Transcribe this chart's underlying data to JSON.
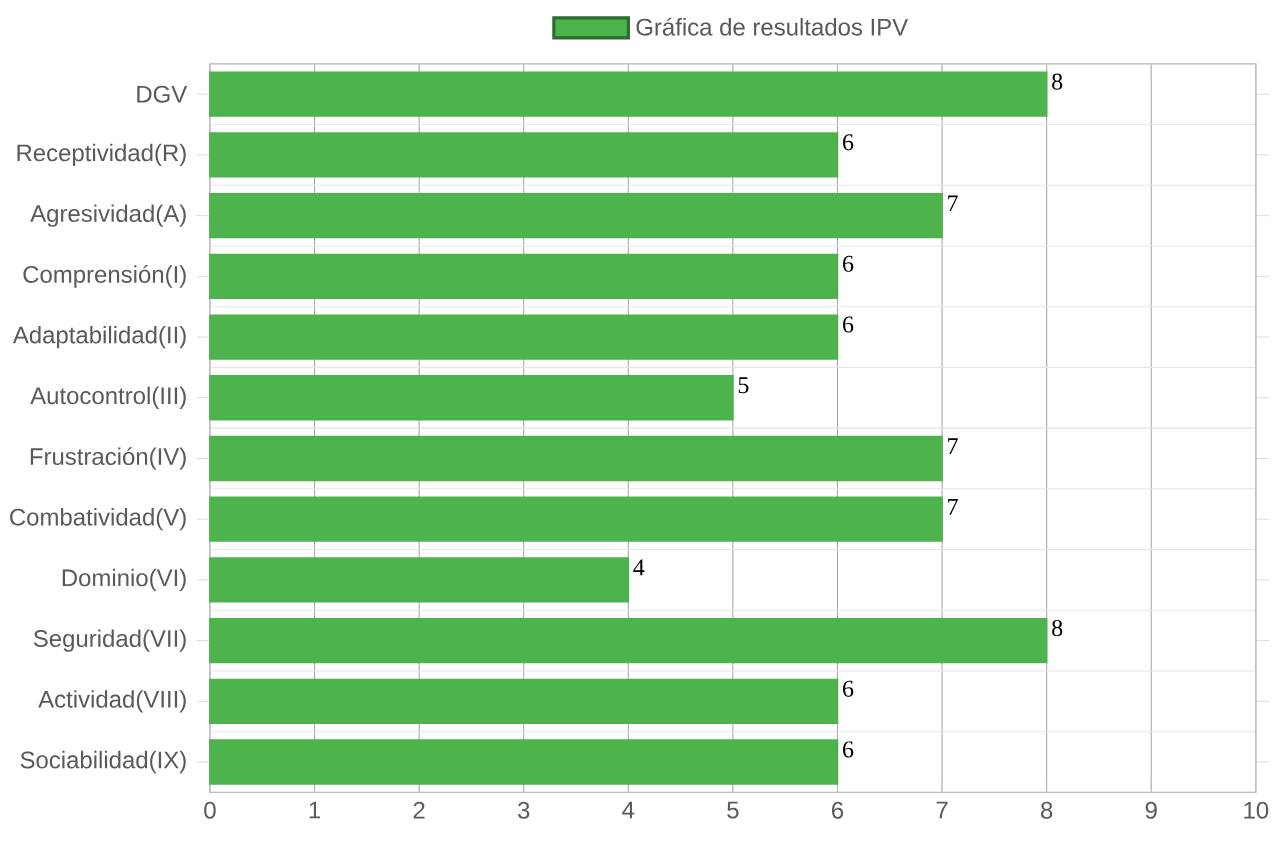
{
  "chart_data": {
    "type": "bar",
    "orientation": "horizontal",
    "categories": [
      "DGV",
      "Receptividad(R)",
      "Agresividad(A)",
      "Comprensión(I)",
      "Adaptabilidad(II)",
      "Autocontrol(III)",
      "Frustración(IV)",
      "Combatividad(V)",
      "Dominio(VI)",
      "Seguridad(VII)",
      "Actividad(VIII)",
      "Sociabilidad(IX)"
    ],
    "series": [
      {
        "name": "Gráfica de resultados IPV",
        "color": "#4db34d",
        "values": [
          8,
          6,
          7,
          6,
          6,
          5,
          7,
          7,
          4,
          8,
          6,
          6
        ]
      }
    ],
    "xlim": [
      0,
      10
    ],
    "xticks": [
      0,
      1,
      2,
      3,
      4,
      5,
      6,
      7,
      8,
      9,
      10
    ],
    "grid": true,
    "legend": "top",
    "data_labels": true
  }
}
